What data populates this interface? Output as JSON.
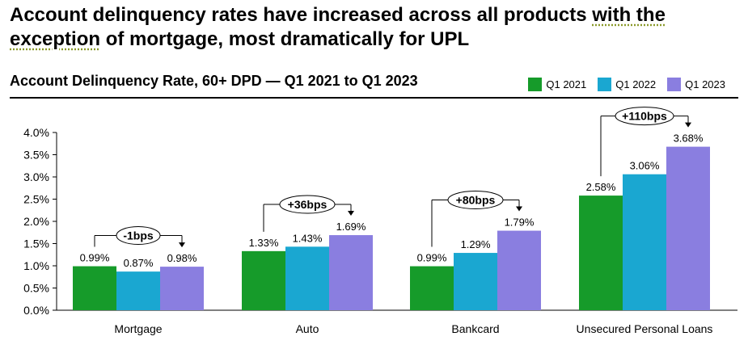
{
  "headline": {
    "prefix": "Account delinquency rates have increased across all products ",
    "with_the": "with the",
    "exception": "exception",
    "rest": " of mortgage, most dramatically for UPL"
  },
  "colors": {
    "Q1 2021": "#169b2a",
    "Q1 2022": "#1aa7d1",
    "Q1 2023": "#8a7ee0"
  },
  "chart_data": {
    "type": "bar",
    "title": "Account Delinquency Rate, 60+ DPD — Q1 2021 to Q1 2023",
    "categories": [
      "Mortgage",
      "Auto",
      "Bankcard",
      "Unsecured Personal Loans"
    ],
    "series": [
      {
        "name": "Q1 2021",
        "values": [
          0.99,
          1.33,
          0.99,
          2.58
        ],
        "labels": [
          "0.99%",
          "1.33%",
          "0.99%",
          "2.58%"
        ]
      },
      {
        "name": "Q1 2022",
        "values": [
          0.87,
          1.43,
          1.29,
          3.06
        ],
        "labels": [
          "0.87%",
          "1.43%",
          "1.29%",
          "3.06%"
        ]
      },
      {
        "name": "Q1 2023",
        "values": [
          0.98,
          1.69,
          1.79,
          3.68
        ],
        "labels": [
          "0.98%",
          "1.69%",
          "1.79%",
          "3.68%"
        ]
      }
    ],
    "annotations": [
      "-1bps",
      "+36bps",
      "+80bps",
      "+110bps"
    ],
    "ylim": [
      0,
      4.0
    ],
    "yticks": [
      "0.0%",
      "0.5%",
      "1.0%",
      "1.5%",
      "2.0%",
      "2.5%",
      "3.0%",
      "3.5%",
      "4.0%"
    ],
    "ytick_values": [
      0,
      0.5,
      1.0,
      1.5,
      2.0,
      2.5,
      3.0,
      3.5,
      4.0
    ],
    "legend": [
      "Q1 2021",
      "Q1 2022",
      "Q1 2023"
    ],
    "legend_position": "top-right",
    "grid": false
  }
}
